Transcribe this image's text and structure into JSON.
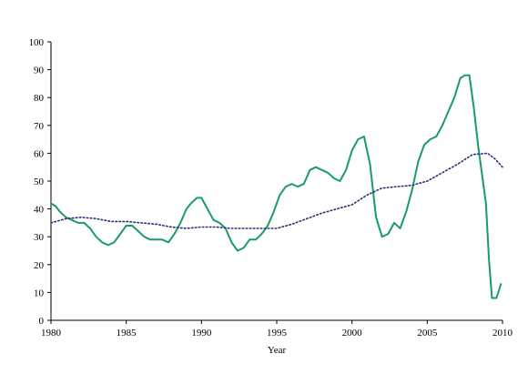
{
  "chart_data": {
    "type": "line",
    "title": "",
    "xlabel": "Year",
    "ylabel": "",
    "xlim": [
      1980,
      2010
    ],
    "ylim": [
      0,
      100
    ],
    "x_ticks": [
      1980,
      1985,
      1990,
      1995,
      2000,
      2005,
      2010
    ],
    "y_ticks": [
      0,
      10,
      20,
      30,
      40,
      50,
      60,
      70,
      80,
      90,
      100
    ],
    "grid": false,
    "legend": "none",
    "series": [
      {
        "color": "#1a9a6c",
        "style": "solid",
        "x": [
          1980.0,
          1980.3,
          1980.6,
          1981.0,
          1981.4,
          1981.8,
          1982.2,
          1982.6,
          1983.0,
          1983.4,
          1983.8,
          1984.2,
          1984.6,
          1985.0,
          1985.4,
          1985.8,
          1986.2,
          1986.6,
          1987.0,
          1987.4,
          1987.8,
          1988.2,
          1988.6,
          1989.0,
          1989.3,
          1989.7,
          1990.0,
          1990.4,
          1990.8,
          1991.2,
          1991.6,
          1992.0,
          1992.4,
          1992.8,
          1993.2,
          1993.6,
          1994.0,
          1994.4,
          1994.8,
          1995.2,
          1995.6,
          1996.0,
          1996.4,
          1996.8,
          1997.2,
          1997.6,
          1998.0,
          1998.4,
          1998.8,
          1999.2,
          1999.6,
          2000.0,
          2000.4,
          2000.8,
          2001.2,
          2001.6,
          2002.0,
          2002.4,
          2002.8,
          2003.2,
          2003.6,
          2004.0,
          2004.4,
          2004.8,
          2005.2,
          2005.6,
          2006.0,
          2006.4,
          2006.8,
          2007.2,
          2007.5,
          2007.8,
          2008.1,
          2008.4,
          2008.7,
          2008.9,
          2009.1,
          2009.3,
          2009.6,
          2009.9
        ],
        "values": [
          42,
          41,
          39,
          37,
          36,
          35,
          35,
          33,
          30,
          28,
          27,
          28,
          31,
          34,
          34,
          32,
          30,
          29,
          29,
          29,
          28,
          31,
          35,
          40,
          42,
          44,
          44,
          40,
          36,
          35,
          33,
          28,
          25,
          26,
          29,
          29,
          31,
          34,
          39,
          45,
          48,
          49,
          48,
          49,
          54,
          55,
          54,
          53,
          51,
          50,
          54,
          61,
          65,
          66,
          56,
          37,
          30,
          31,
          35,
          33,
          39,
          47,
          57,
          63,
          65,
          66,
          70,
          75,
          80,
          87,
          88,
          88,
          76,
          62,
          50,
          42,
          22,
          8,
          8,
          13
        ]
      },
      {
        "color": "#2b2b7a",
        "style": "dotted",
        "x": [
          1980,
          1981,
          1982,
          1983,
          1984,
          1985,
          1986,
          1987,
          1988,
          1989,
          1990,
          1991,
          1992,
          1993,
          1994,
          1995,
          1996,
          1997,
          1998,
          1999,
          2000,
          2001,
          2002,
          2003,
          2004,
          2005,
          2006,
          2007,
          2008,
          2009,
          2009.5,
          2010
        ],
        "values": [
          35,
          36.5,
          37,
          36.5,
          35.5,
          35.5,
          35,
          34.5,
          33.5,
          33,
          33.5,
          33.5,
          33,
          33,
          33,
          33,
          34.5,
          36.5,
          38.5,
          40,
          41.5,
          45,
          47.5,
          48,
          48.5,
          50,
          53,
          56,
          59.5,
          60,
          58,
          55
        ]
      }
    ]
  }
}
